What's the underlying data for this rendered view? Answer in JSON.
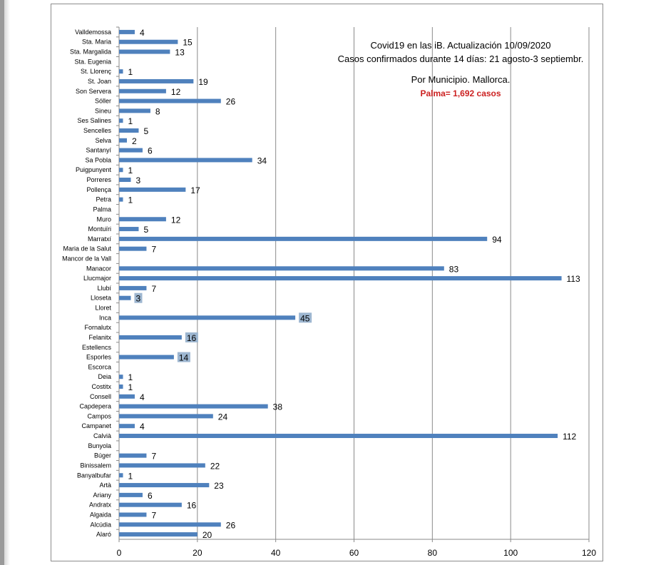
{
  "chart_data": {
    "type": "bar",
    "orientation": "horizontal",
    "title": [
      "Covid19 en las iB. Actualización  10/09/2020",
      "Casos  confirmados durante 14 días: 21 agosto-3 septiembr.",
      "Por Municipio. Mallorca."
    ],
    "annotation": "Palma= 1,692 casos",
    "xlim": [
      0,
      120
    ],
    "xticks": [
      0,
      20,
      40,
      60,
      80,
      100,
      120
    ],
    "grid": "vertical",
    "bar_color": "#4f81bd",
    "highlighted_labels": [
      "Lloseta",
      "Inca",
      "Felanitx",
      "Esporles"
    ],
    "categories": [
      "Valldemossa",
      "Sta. Maria",
      "Sta. Margalida",
      "Sta. Eugenia",
      "St. Llorenç",
      "St. Joan",
      "Son Servera",
      "Sóller",
      "Sineu",
      "Ses Salines",
      "Sencelles",
      "Selva",
      "Santanyí",
      "Sa Pobla",
      "Puigpunyent",
      "Porreres",
      "Pollença",
      "Petra",
      "Palma",
      "Muro",
      "Montuïri",
      "Marratxí",
      "Maria de la Salut",
      "Mancor de la Vall",
      "Manacor",
      "Llucmajor",
      "Llubí",
      "Lloseta",
      "Lloret",
      "Inca",
      "Fornalutx",
      "Felanitx",
      "Estellencs",
      "Esporles",
      "Escorca",
      "Deia",
      "Costitx",
      "Consell",
      "Capdepera",
      "Campos",
      "Campanet",
      "Calvià",
      "Bunyola",
      "Búger",
      "Binissalem",
      "Banyalbufar",
      "Artà",
      "Ariany",
      "Andratx",
      "Algaida",
      "Alcúdia",
      "Alaró"
    ],
    "values": [
      4,
      15,
      13,
      null,
      1,
      19,
      12,
      26,
      8,
      1,
      5,
      2,
      6,
      34,
      1,
      3,
      17,
      1,
      null,
      12,
      5,
      94,
      7,
      null,
      83,
      113,
      7,
      3,
      null,
      45,
      null,
      16,
      null,
      14,
      null,
      1,
      1,
      4,
      38,
      24,
      4,
      112,
      null,
      7,
      22,
      1,
      23,
      6,
      16,
      7,
      26,
      20
    ]
  }
}
